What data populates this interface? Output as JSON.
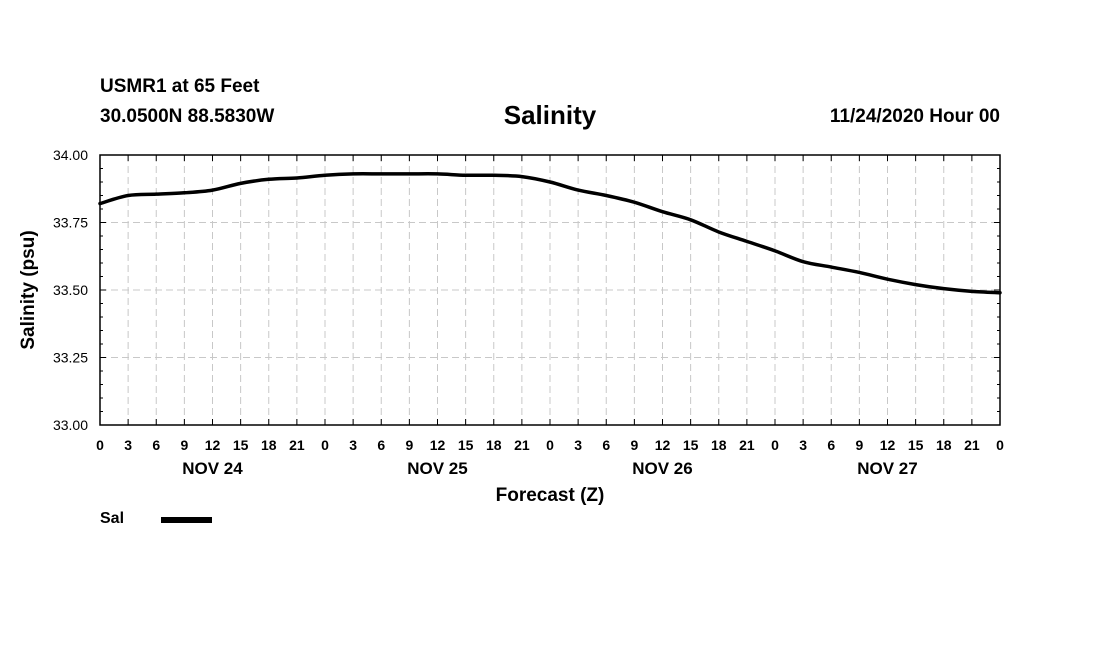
{
  "header": {
    "station": "USMR1 at 65 Feet",
    "coords": "30.0500N 88.5830W",
    "title": "Salinity",
    "timestamp": "11/24/2020 Hour 00"
  },
  "chart_data": {
    "type": "line",
    "title": "Salinity",
    "xlabel": "Forecast (Z)",
    "ylabel": "Salinity (psu)",
    "ylim": [
      33.0,
      34.0
    ],
    "xlim": [
      0,
      96
    ],
    "yticks": [
      "33.00",
      "33.25",
      "33.50",
      "33.75",
      "34.00"
    ],
    "xticks": [
      "0",
      "3",
      "6",
      "9",
      "12",
      "15",
      "18",
      "21",
      "0",
      "3",
      "6",
      "9",
      "12",
      "15",
      "18",
      "21",
      "0",
      "3",
      "6",
      "9",
      "12",
      "15",
      "18",
      "21",
      "0",
      "3",
      "6",
      "9",
      "12",
      "15",
      "18",
      "21",
      "0"
    ],
    "day_labels": [
      {
        "label": "NOV 24",
        "hour": 12
      },
      {
        "label": "NOV 25",
        "hour": 36
      },
      {
        "label": "NOV 26",
        "hour": 60
      },
      {
        "label": "NOV 27",
        "hour": 84
      }
    ],
    "grid": true,
    "series": [
      {
        "name": "Sal",
        "x": [
          0,
          3,
          6,
          9,
          12,
          15,
          18,
          21,
          24,
          27,
          30,
          33,
          36,
          39,
          42,
          45,
          48,
          51,
          54,
          57,
          60,
          63,
          66,
          69,
          72,
          75,
          78,
          81,
          84,
          87,
          90,
          93,
          96
        ],
        "values": [
          33.82,
          33.85,
          33.855,
          33.86,
          33.87,
          33.895,
          33.91,
          33.915,
          33.925,
          33.93,
          33.93,
          33.93,
          33.93,
          33.925,
          33.925,
          33.92,
          33.9,
          33.87,
          33.85,
          33.825,
          33.79,
          33.76,
          33.715,
          33.68,
          33.645,
          33.605,
          33.585,
          33.565,
          33.54,
          33.52,
          33.505,
          33.495,
          33.49
        ]
      }
    ]
  },
  "legend": {
    "label": "Sal"
  }
}
